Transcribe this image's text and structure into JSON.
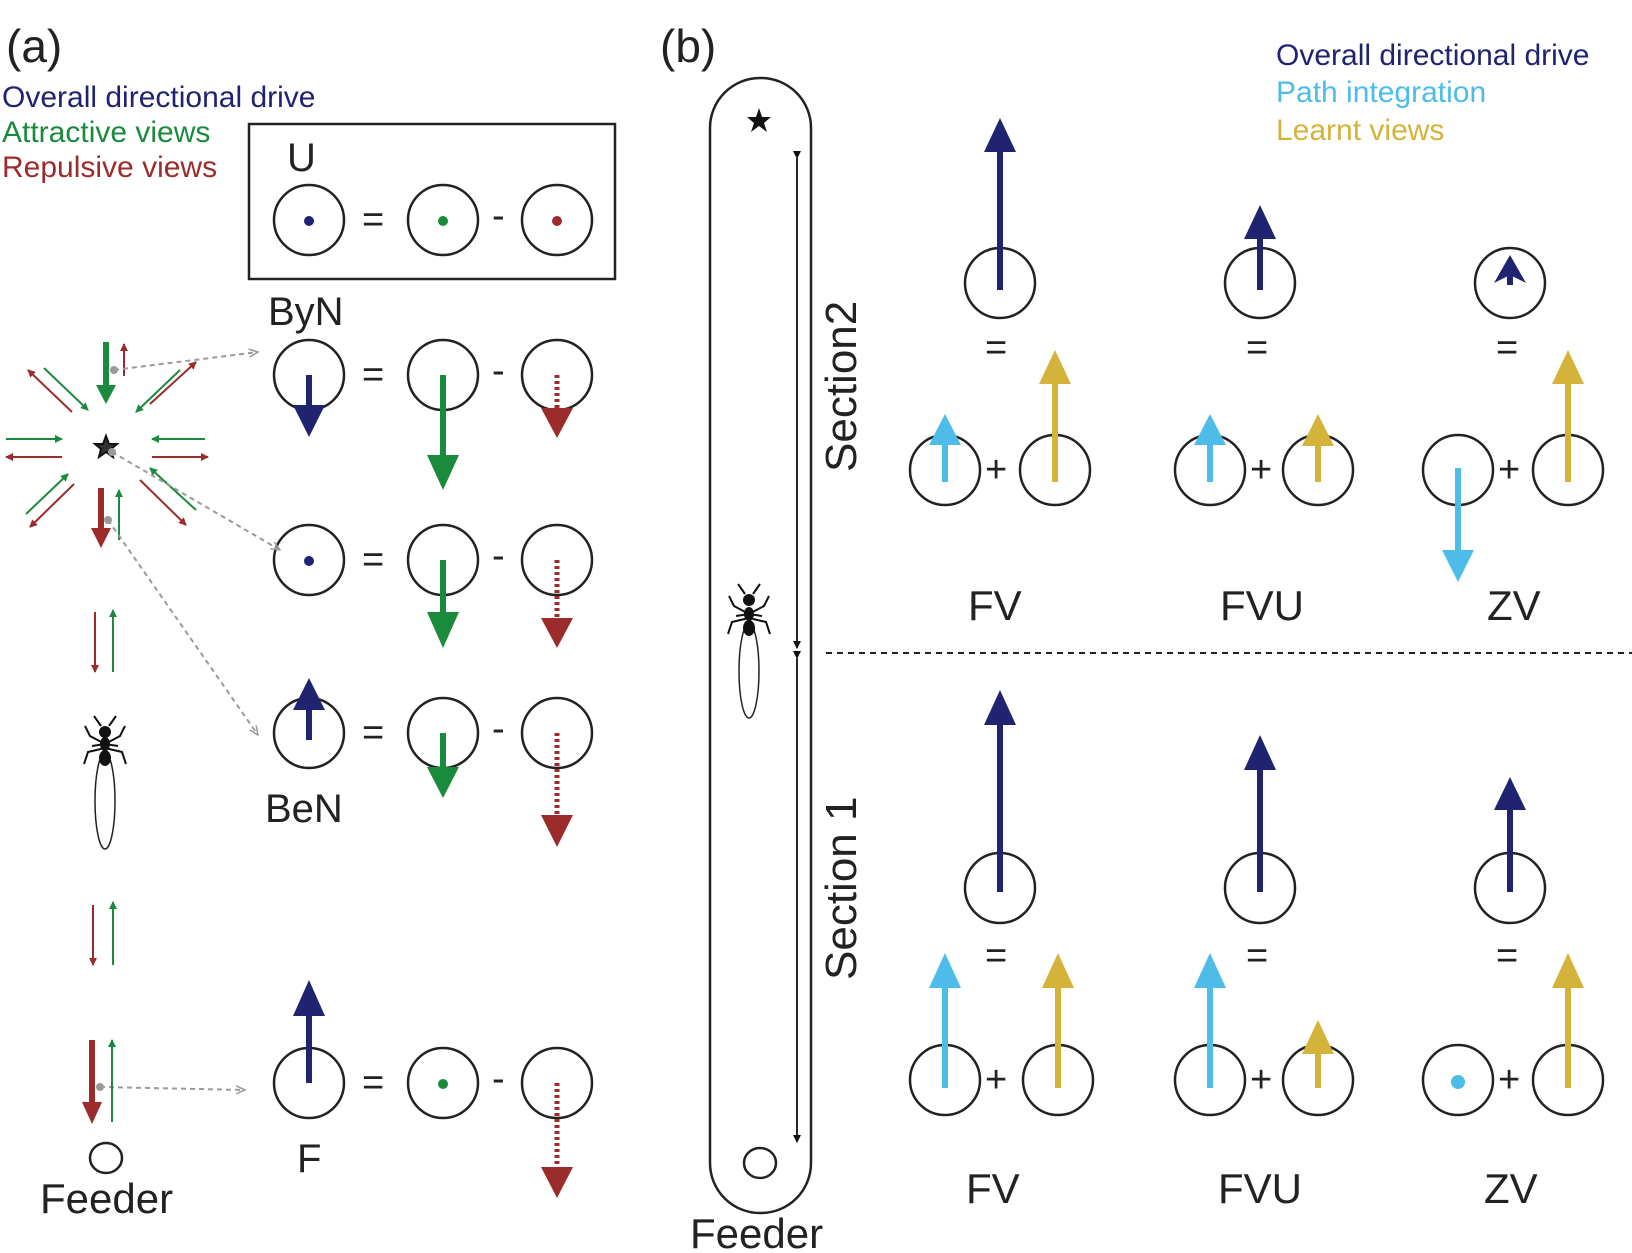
{
  "colors": {
    "overall": "#1f2370",
    "attractive": "#1a8a3c",
    "repulsive": "#9c2b2b",
    "path_integration": "#4dbce9",
    "learnt_views": "#d4b33a",
    "ink": "#222222",
    "pointer": "#9a9a9a"
  },
  "panel_a": {
    "label": "(a)",
    "legend": {
      "overall": "Overall directional drive",
      "attractive": "Attractive views",
      "repulsive": "Repulsive views"
    },
    "rows": {
      "u": "U",
      "byn": "ByN",
      "ben": "BeN",
      "f": "F"
    },
    "feeder": "Feeder",
    "equals": "=",
    "minus": "-"
  },
  "panel_b": {
    "label": "(b)",
    "legend": {
      "overall": "Overall directional drive",
      "path": "Path integration",
      "learnt": "Learnt views"
    },
    "section2": "Section2",
    "section1": "Section 1",
    "feeder": "Feeder",
    "conditions_top": [
      "FV",
      "FVU",
      "ZV"
    ],
    "conditions_bottom": [
      "FV",
      "FVU",
      "ZV"
    ],
    "equals": "=",
    "plus": "+"
  }
}
